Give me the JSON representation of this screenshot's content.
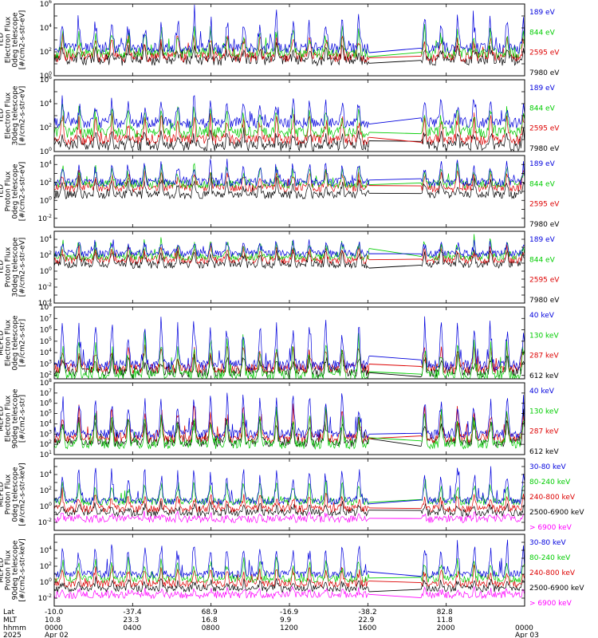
{
  "chart_data": [
    {
      "type": "line",
      "ylabel": [
        "TED",
        "Electron Flux",
        "0deg telescope",
        "[#/cm2-s-str-eV]"
      ],
      "y_log_exponents": [
        0,
        2,
        4,
        6
      ],
      "y_log_min": 0,
      "y_log_max": 6,
      "legend_placement": "right",
      "series": [
        {
          "name": "7980 eV",
          "color": "#000000",
          "base": 1.3,
          "amp": 1.0
        },
        {
          "name": "2595 eV",
          "color": "#dd0000",
          "base": 1.6,
          "amp": 1.6
        },
        {
          "name": "844 eV",
          "color": "#00cc00",
          "base": 1.9,
          "amp": 1.8
        },
        {
          "name": "189 eV",
          "color": "#0000dd",
          "base": 2.3,
          "amp": 2.4
        }
      ]
    },
    {
      "type": "line",
      "ylabel": [
        "TED",
        "Electron Flux",
        "30deg telescope",
        "[#/cm2-s-str-eV]"
      ],
      "y_log_exponents": [
        0,
        2,
        4,
        6
      ],
      "y_log_min": 0,
      "y_log_max": 6,
      "legend_placement": "right",
      "series": [
        {
          "name": "7980 eV",
          "color": "#000000",
          "base": 0.5,
          "amp": 1.0
        },
        {
          "name": "2595 eV",
          "color": "#dd0000",
          "base": 1.0,
          "amp": 1.8
        },
        {
          "name": "844 eV",
          "color": "#00cc00",
          "base": 1.6,
          "amp": 1.8
        },
        {
          "name": "189 eV",
          "color": "#0000dd",
          "base": 2.4,
          "amp": 1.8
        }
      ]
    },
    {
      "type": "line",
      "ylabel": [
        "TED",
        "Proton Flux",
        "0deg telescope",
        "[#/cm2-s-str-eV]"
      ],
      "y_log_exponents": [
        -2,
        0,
        2,
        4
      ],
      "y_log_min": -3,
      "y_log_max": 5,
      "legend_placement": "right",
      "series": [
        {
          "name": "7980 eV",
          "color": "#000000",
          "base": 0.6,
          "amp": 1.6
        },
        {
          "name": "2595 eV",
          "color": "#dd0000",
          "base": 1.4,
          "amp": 1.6
        },
        {
          "name": "844 eV",
          "color": "#00cc00",
          "base": 1.8,
          "amp": 1.8
        },
        {
          "name": "189 eV",
          "color": "#0000dd",
          "base": 2.0,
          "amp": 2.0
        }
      ]
    },
    {
      "type": "line",
      "ylabel": [
        "TED",
        "Proton Flux",
        "30deg telescope",
        "[#/cm2-s-str-eV]"
      ],
      "y_log_exponents": [
        -4,
        -2,
        0,
        2,
        4
      ],
      "y_log_min": -4,
      "y_log_max": 5,
      "legend_placement": "right",
      "series": [
        {
          "name": "7980 eV",
          "color": "#000000",
          "base": 0.8,
          "amp": 1.6
        },
        {
          "name": "2595 eV",
          "color": "#dd0000",
          "base": 1.4,
          "amp": 1.4
        },
        {
          "name": "844 eV",
          "color": "#00cc00",
          "base": 1.8,
          "amp": 1.8
        },
        {
          "name": "189 eV",
          "color": "#0000dd",
          "base": 2.2,
          "amp": 1.4
        }
      ]
    },
    {
      "type": "line",
      "ylabel": [
        "MEPED",
        "Electron Flux",
        "0deg telescope",
        "[#/cm2-s-str]"
      ],
      "y_log_exponents": [
        2,
        3,
        4,
        5,
        6,
        7,
        8
      ],
      "y_log_min": 1.7,
      "y_log_max": 8,
      "legend_placement": "right",
      "series": [
        {
          "name": "612 keV",
          "color": "#000000",
          "base": 2.3,
          "amp": 1.2
        },
        {
          "name": "287 keV",
          "color": "#dd0000",
          "base": 2.6,
          "amp": 1.8
        },
        {
          "name": "130 keV",
          "color": "#00cc00",
          "base": 2.0,
          "amp": 2.6
        },
        {
          "name": "40 keV",
          "color": "#0000dd",
          "base": 2.9,
          "amp": 3.4
        }
      ]
    },
    {
      "type": "line",
      "ylabel": [
        "MEPED",
        "Electron Flux",
        "90deg telescope",
        "[#/cm2-s-str]"
      ],
      "y_log_exponents": [
        1,
        2,
        3,
        4,
        5,
        6,
        7,
        8
      ],
      "y_log_min": 1,
      "y_log_max": 8,
      "legend_placement": "right",
      "series": [
        {
          "name": "612 keV",
          "color": "#000000",
          "base": 2.2,
          "amp": 2.0
        },
        {
          "name": "287 keV",
          "color": "#dd0000",
          "base": 2.6,
          "amp": 2.6
        },
        {
          "name": "130 keV",
          "color": "#00cc00",
          "base": 2.0,
          "amp": 2.8
        },
        {
          "name": "40 keV",
          "color": "#0000dd",
          "base": 3.0,
          "amp": 3.4
        }
      ]
    },
    {
      "type": "line",
      "ylabel": [
        "MEPED",
        "Proton Flux",
        "0deg telescope",
        "[#/cm2-s-str-keV]"
      ],
      "y_log_exponents": [
        -2,
        0,
        2,
        4
      ],
      "y_log_min": -3,
      "y_log_max": 6,
      "legend_placement": "right",
      "series": [
        {
          "name": "> 6900 keV",
          "color": "#ff00ff",
          "base": -1.6,
          "amp": 0.6
        },
        {
          "name": "2500-6900 keV",
          "color": "#000000",
          "base": -0.8,
          "amp": 1.0
        },
        {
          "name": "240-800 keV",
          "color": "#dd0000",
          "base": -0.3,
          "amp": 1.6
        },
        {
          "name": "80-240 keV",
          "color": "#00cc00",
          "base": 0.6,
          "amp": 2.2
        },
        {
          "name": "30-80 keV",
          "color": "#0000dd",
          "base": 0.7,
          "amp": 3.6
        }
      ]
    },
    {
      "type": "line",
      "ylabel": [
        "MEPED",
        "Proton Flux",
        "90deg telescope",
        "[#/cm2-s-str-keV]"
      ],
      "y_log_exponents": [
        -2,
        0,
        2,
        4
      ],
      "y_log_min": -3,
      "y_log_max": 6,
      "legend_placement": "right",
      "series": [
        {
          "name": "> 6900 keV",
          "color": "#ff00ff",
          "base": -1.6,
          "amp": 0.6
        },
        {
          "name": "2500-6900 keV",
          "color": "#000000",
          "base": -0.8,
          "amp": 1.0
        },
        {
          "name": "240-800 keV",
          "color": "#dd0000",
          "base": -0.2,
          "amp": 1.8
        },
        {
          "name": "80-240 keV",
          "color": "#00cc00",
          "base": 0.4,
          "amp": 2.2
        },
        {
          "name": "30-80 keV",
          "color": "#0000dd",
          "base": 1.0,
          "amp": 3.4
        }
      ]
    }
  ],
  "x_axis": {
    "row_labels": [
      "Lat",
      "MLT",
      "hhmm",
      "2025"
    ],
    "ticks": [
      {
        "hour": 0,
        "lat": "-10.0",
        "mlt": "10.8",
        "hhmm": "0000",
        "date": "Apr 02"
      },
      {
        "hour": 4,
        "lat": "-37.4",
        "mlt": "23.3",
        "hhmm": "0400",
        "date": ""
      },
      {
        "hour": 8,
        "lat": "68.9",
        "mlt": "16.8",
        "hhmm": "0800",
        "date": ""
      },
      {
        "hour": 12,
        "lat": "-16.9",
        "mlt": "9.9",
        "hhmm": "1200",
        "date": ""
      },
      {
        "hour": 16,
        "lat": "-38.2",
        "mlt": "22.9",
        "hhmm": "1600",
        "date": ""
      },
      {
        "hour": 20,
        "lat": "82.8",
        "mlt": "11.8",
        "hhmm": "2000",
        "date": ""
      },
      {
        "hour": 24,
        "lat": "",
        "mlt": "",
        "hhmm": "0000",
        "date": "Apr 03"
      }
    ],
    "range_hours": [
      0,
      24
    ],
    "data_gap_hours": [
      16.1,
      18.7
    ]
  }
}
